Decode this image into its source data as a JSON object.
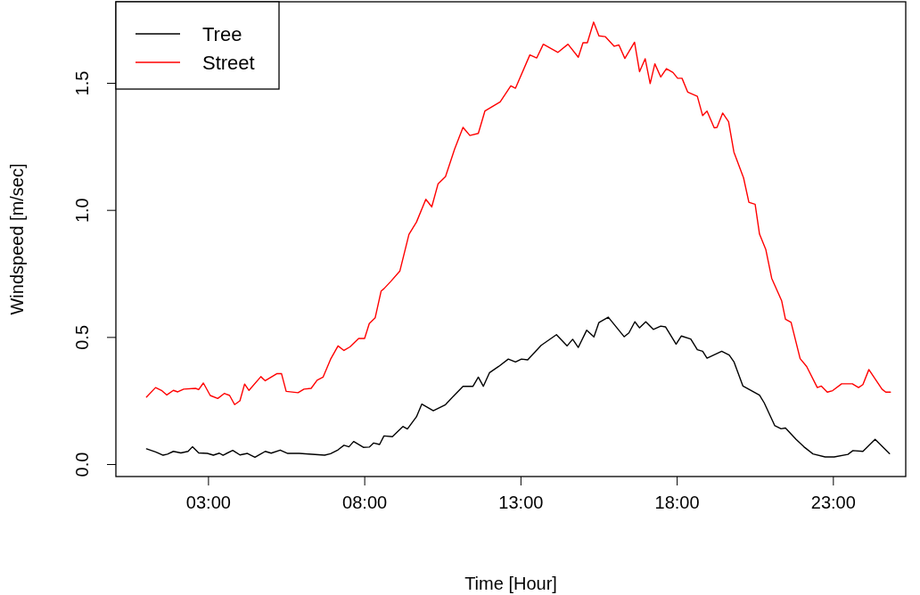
{
  "chart_data": {
    "type": "line",
    "xlabel": "Time [Hour]",
    "ylabel": "Windspeed [m/sec]",
    "xlim": [
      0.05,
      25.33
    ],
    "xticks": [
      {
        "value": 3,
        "label": "03:00"
      },
      {
        "value": 8,
        "label": "08:00"
      },
      {
        "value": 13,
        "label": "13:00"
      },
      {
        "value": 18,
        "label": "18:00"
      },
      {
        "value": 23,
        "label": "23:00"
      }
    ],
    "ylim": [
      -0.049,
      1.819
    ],
    "yticks": [
      {
        "value": 0,
        "label": "0.0"
      },
      {
        "value": 0.5,
        "label": "0.5"
      },
      {
        "value": 1,
        "label": "1.0"
      },
      {
        "value": 1.5,
        "label": "1.5"
      }
    ],
    "grid": false,
    "legend": "top left",
    "marker": "none",
    "line_style": "solid",
    "series": [
      {
        "name": "Tree",
        "color": "#000000",
        "x": [
          1.03,
          1.32,
          1.56,
          1.7,
          1.89,
          2.13,
          2.36,
          2.5,
          2.7,
          2.98,
          3.17,
          3.36,
          3.48,
          3.79,
          4.02,
          4.26,
          4.5,
          4.83,
          5.02,
          5.31,
          5.55,
          5.92,
          6.73,
          6.92,
          7.16,
          7.35,
          7.51,
          7.66,
          7.97,
          8.16,
          8.3,
          8.49,
          8.63,
          8.9,
          9.24,
          9.38,
          9.67,
          9.84,
          10.21,
          10.6,
          10.89,
          11.16,
          11.48,
          11.65,
          11.81,
          12.01,
          12.3,
          12.61,
          12.84,
          13.03,
          13.23,
          13.66,
          14.15,
          14.49,
          14.67,
          14.85,
          15.12,
          15.35,
          15.51,
          15.81,
          16.32,
          16.47,
          16.66,
          16.81,
          17.01,
          17.25,
          17.49,
          17.64,
          17.98,
          18.15,
          18.45,
          18.66,
          18.83,
          18.97,
          19.44,
          19.68,
          19.83,
          20.12,
          20.65,
          20.8,
          21.14,
          21.34,
          21.48,
          21.82,
          22.07,
          22.36,
          22.75,
          23.04,
          23.48,
          23.64,
          23.96,
          24.35,
          24.81
        ],
        "values": [
          0.06,
          0.048,
          0.035,
          0.039,
          0.05,
          0.044,
          0.05,
          0.068,
          0.044,
          0.042,
          0.035,
          0.043,
          0.035,
          0.054,
          0.036,
          0.042,
          0.027,
          0.05,
          0.043,
          0.055,
          0.042,
          0.042,
          0.035,
          0.041,
          0.056,
          0.074,
          0.068,
          0.089,
          0.066,
          0.067,
          0.083,
          0.077,
          0.111,
          0.108,
          0.148,
          0.138,
          0.186,
          0.236,
          0.21,
          0.234,
          0.272,
          0.306,
          0.306,
          0.342,
          0.306,
          0.36,
          0.384,
          0.413,
          0.402,
          0.413,
          0.41,
          0.467,
          0.509,
          0.465,
          0.491,
          0.459,
          0.527,
          0.5,
          0.557,
          0.578,
          0.501,
          0.516,
          0.56,
          0.536,
          0.56,
          0.53,
          0.543,
          0.54,
          0.472,
          0.504,
          0.492,
          0.45,
          0.444,
          0.417,
          0.444,
          0.429,
          0.403,
          0.307,
          0.271,
          0.241,
          0.151,
          0.139,
          0.142,
          0.097,
          0.068,
          0.04,
          0.028,
          0.028,
          0.038,
          0.053,
          0.05,
          0.097,
          0.041
        ]
      },
      {
        "name": "Street",
        "color": "#ff0000",
        "x": [
          1.03,
          1.32,
          1.51,
          1.68,
          1.89,
          2.03,
          2.22,
          2.6,
          2.7,
          2.85,
          3.07,
          3.31,
          3.52,
          3.69,
          3.85,
          4.02,
          4.17,
          4.31,
          4.69,
          4.83,
          5.21,
          5.35,
          5.5,
          5.88,
          6.07,
          6.3,
          6.49,
          6.68,
          6.92,
          7.16,
          7.35,
          7.54,
          7.82,
          8.01,
          8.16,
          8.35,
          8.54,
          8.63,
          8.85,
          9.14,
          9.43,
          9.67,
          9.97,
          10.16,
          10.36,
          10.6,
          10.89,
          11.16,
          11.38,
          11.65,
          11.86,
          12.35,
          12.69,
          12.84,
          13.3,
          13.52,
          13.73,
          14.2,
          14.52,
          14.85,
          15.0,
          15.14,
          15.34,
          15.51,
          15.71,
          16.0,
          16.15,
          16.34,
          16.65,
          16.81,
          16.99,
          17.15,
          17.3,
          17.49,
          17.67,
          17.88,
          18.03,
          18.17,
          18.35,
          18.66,
          18.83,
          18.97,
          19.2,
          19.29,
          19.47,
          19.66,
          19.83,
          20.14,
          20.31,
          20.51,
          20.65,
          20.85,
          21.04,
          21.36,
          21.48,
          21.66,
          21.95,
          22.16,
          22.5,
          22.63,
          22.82,
          22.99,
          23.28,
          23.62,
          23.82,
          23.96,
          24.15,
          24.57,
          24.69,
          24.84
        ],
        "values": [
          0.264,
          0.301,
          0.29,
          0.272,
          0.29,
          0.284,
          0.295,
          0.298,
          0.293,
          0.319,
          0.27,
          0.258,
          0.278,
          0.27,
          0.234,
          0.249,
          0.315,
          0.29,
          0.344,
          0.328,
          0.356,
          0.356,
          0.286,
          0.281,
          0.295,
          0.298,
          0.33,
          0.342,
          0.412,
          0.465,
          0.447,
          0.461,
          0.494,
          0.494,
          0.553,
          0.576,
          0.681,
          0.69,
          0.719,
          0.76,
          0.904,
          0.952,
          1.042,
          1.012,
          1.102,
          1.131,
          1.239,
          1.325,
          1.293,
          1.301,
          1.389,
          1.425,
          1.488,
          1.479,
          1.61,
          1.598,
          1.652,
          1.62,
          1.652,
          1.601,
          1.658,
          1.658,
          1.739,
          1.685,
          1.682,
          1.644,
          1.649,
          1.596,
          1.66,
          1.544,
          1.595,
          1.497,
          1.575,
          1.523,
          1.556,
          1.541,
          1.518,
          1.518,
          1.464,
          1.447,
          1.371,
          1.389,
          1.323,
          1.325,
          1.381,
          1.347,
          1.228,
          1.126,
          1.03,
          1.022,
          0.905,
          0.845,
          0.731,
          0.642,
          0.57,
          0.558,
          0.415,
          0.384,
          0.301,
          0.307,
          0.283,
          0.289,
          0.316,
          0.316,
          0.301,
          0.313,
          0.372,
          0.295,
          0.283,
          0.283
        ]
      }
    ]
  }
}
